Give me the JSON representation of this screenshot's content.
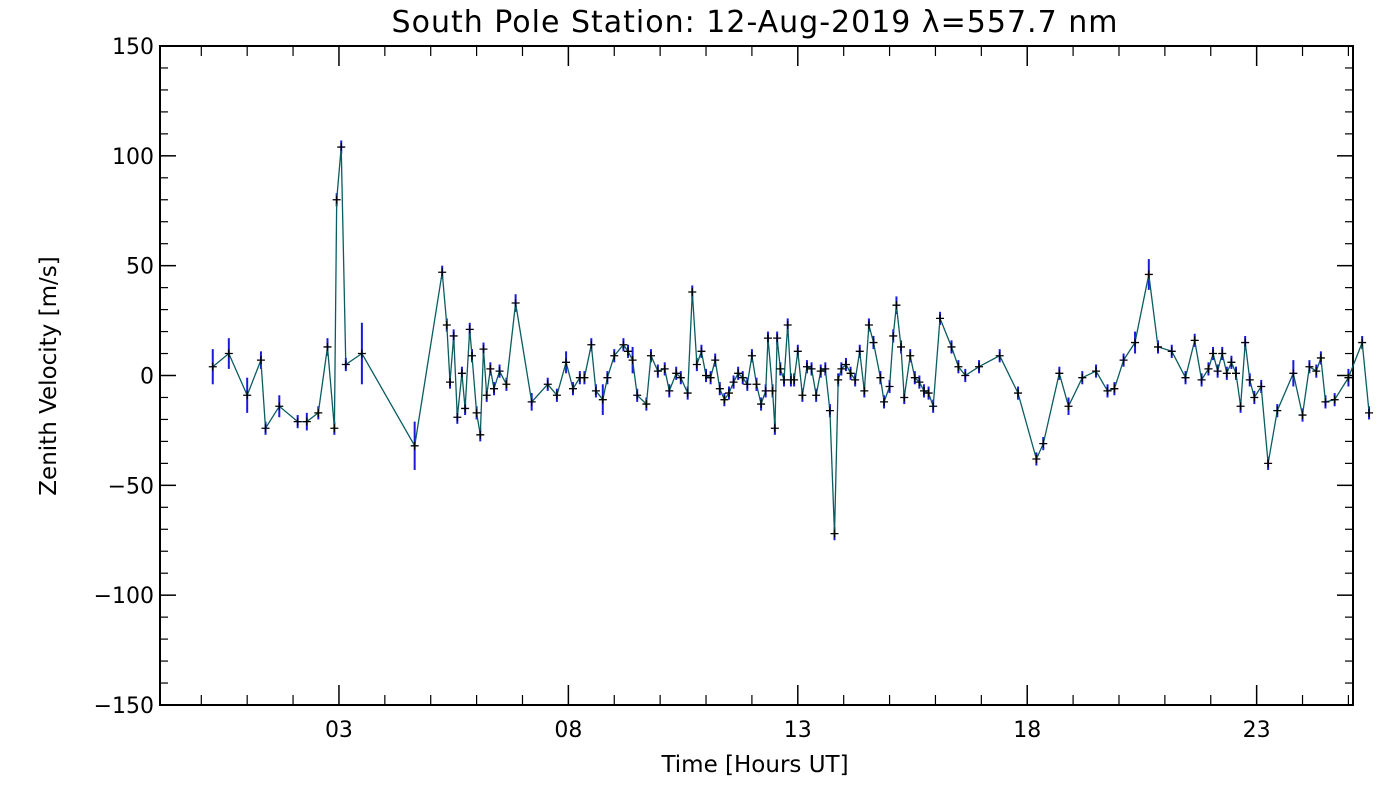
{
  "chart_data": {
    "type": "line",
    "title": "South Pole Station: 12-Aug-2019 λ=557.7 nm",
    "xlabel": "Time [Hours UT]",
    "ylabel": "Zenith Velocity [m/s]",
    "xlim": [
      -0.9,
      25.1
    ],
    "ylim": [
      -150,
      150
    ],
    "x_ticks": [
      3,
      8,
      13,
      18,
      23
    ],
    "x_tick_labels": [
      "03",
      "08",
      "13",
      "18",
      "23"
    ],
    "y_ticks": [
      -150,
      -100,
      -50,
      0,
      50,
      100,
      150
    ],
    "y_tick_labels": [
      "−150",
      "−100",
      "−50",
      "0",
      "50",
      "100",
      "150"
    ],
    "line_color": "#0a5c60",
    "errorbar_color": "#1a1adc",
    "marker_color": "#000000",
    "series": [
      {
        "name": "Zenith Velocity",
        "points": [
          [
            0.25,
            4,
            8
          ],
          [
            0.6,
            10,
            7
          ],
          [
            1.0,
            -9,
            8
          ],
          [
            1.3,
            7,
            4
          ],
          [
            1.4,
            -24,
            3
          ],
          [
            1.7,
            -14,
            5
          ],
          [
            2.1,
            -21,
            3
          ],
          [
            2.3,
            -21,
            4
          ],
          [
            2.55,
            -17,
            3
          ],
          [
            2.75,
            13,
            4
          ],
          [
            2.9,
            -24,
            3
          ],
          [
            2.95,
            80,
            3
          ],
          [
            3.05,
            104,
            3
          ],
          [
            3.15,
            5,
            3
          ],
          [
            3.5,
            10,
            14
          ],
          [
            4.65,
            -32,
            11
          ],
          [
            5.25,
            47,
            3
          ],
          [
            5.35,
            23,
            3
          ],
          [
            5.42,
            -3,
            3
          ],
          [
            5.5,
            18,
            3
          ],
          [
            5.58,
            -19,
            3
          ],
          [
            5.68,
            1,
            3
          ],
          [
            5.75,
            -15,
            3
          ],
          [
            5.85,
            21,
            3
          ],
          [
            5.9,
            9,
            3
          ],
          [
            6.0,
            -17,
            3
          ],
          [
            6.08,
            -27,
            3
          ],
          [
            6.15,
            12,
            3
          ],
          [
            6.22,
            -9,
            3
          ],
          [
            6.3,
            3,
            3
          ],
          [
            6.38,
            -6,
            3
          ],
          [
            6.5,
            2,
            3
          ],
          [
            6.65,
            -4,
            3
          ],
          [
            6.85,
            33,
            4
          ],
          [
            7.2,
            -12,
            4
          ],
          [
            7.55,
            -4,
            3
          ],
          [
            7.75,
            -9,
            3
          ],
          [
            7.95,
            6,
            5
          ],
          [
            8.1,
            -6,
            3
          ],
          [
            8.25,
            -1,
            3
          ],
          [
            8.35,
            -1,
            3
          ],
          [
            8.5,
            14,
            3
          ],
          [
            8.6,
            -7,
            3
          ],
          [
            8.75,
            -11,
            7
          ],
          [
            8.85,
            -1,
            3
          ],
          [
            9.0,
            9,
            3
          ],
          [
            9.2,
            14,
            3
          ],
          [
            9.3,
            11,
            3
          ],
          [
            9.4,
            7,
            6
          ],
          [
            9.5,
            -9,
            3
          ],
          [
            9.7,
            -13,
            3
          ],
          [
            9.8,
            9,
            3
          ],
          [
            9.95,
            2,
            3
          ],
          [
            10.1,
            3,
            3
          ],
          [
            10.2,
            -7,
            3
          ],
          [
            10.35,
            1,
            3
          ],
          [
            10.45,
            -1,
            3
          ],
          [
            10.6,
            -8,
            3
          ],
          [
            10.7,
            38,
            3
          ],
          [
            10.8,
            5,
            3
          ],
          [
            10.9,
            11,
            3
          ],
          [
            11.0,
            0,
            3
          ],
          [
            11.1,
            -1,
            3
          ],
          [
            11.2,
            7,
            3
          ],
          [
            11.3,
            -6,
            3
          ],
          [
            11.4,
            -11,
            3
          ],
          [
            11.5,
            -8,
            3
          ],
          [
            11.6,
            -3,
            3
          ],
          [
            11.7,
            1,
            3
          ],
          [
            11.8,
            -1,
            3
          ],
          [
            11.9,
            -4,
            3
          ],
          [
            12.0,
            9,
            3
          ],
          [
            12.1,
            -4,
            3
          ],
          [
            12.2,
            -13,
            3
          ],
          [
            12.3,
            -7,
            3
          ],
          [
            12.35,
            17,
            3
          ],
          [
            12.45,
            -7,
            3
          ],
          [
            12.5,
            -24,
            3
          ],
          [
            12.55,
            17,
            3
          ],
          [
            12.62,
            3,
            3
          ],
          [
            12.7,
            -2,
            3
          ],
          [
            12.78,
            23,
            3
          ],
          [
            12.85,
            -2,
            3
          ],
          [
            12.92,
            -2,
            3
          ],
          [
            13.0,
            11,
            3
          ],
          [
            13.1,
            -9,
            3
          ],
          [
            13.2,
            4,
            3
          ],
          [
            13.3,
            3,
            3
          ],
          [
            13.4,
            -9,
            3
          ],
          [
            13.5,
            2,
            3
          ],
          [
            13.6,
            3,
            3
          ],
          [
            13.7,
            -16,
            3
          ],
          [
            13.8,
            -72,
            3
          ],
          [
            13.88,
            -2,
            3
          ],
          [
            13.95,
            3,
            3
          ],
          [
            14.05,
            5,
            3
          ],
          [
            14.15,
            1,
            3
          ],
          [
            14.25,
            -2,
            3
          ],
          [
            14.35,
            11,
            3
          ],
          [
            14.45,
            -7,
            3
          ],
          [
            14.55,
            23,
            3
          ],
          [
            14.65,
            15,
            3
          ],
          [
            14.8,
            -1,
            3
          ],
          [
            14.88,
            -12,
            3
          ],
          [
            15.0,
            -5,
            3
          ],
          [
            15.08,
            18,
            3
          ],
          [
            15.15,
            32,
            4
          ],
          [
            15.25,
            13,
            3
          ],
          [
            15.32,
            -10,
            3
          ],
          [
            15.45,
            9,
            3
          ],
          [
            15.55,
            -1,
            3
          ],
          [
            15.65,
            -3,
            3
          ],
          [
            15.75,
            -7,
            3
          ],
          [
            15.85,
            -8,
            3
          ],
          [
            15.95,
            -14,
            3
          ],
          [
            16.1,
            26,
            3
          ],
          [
            16.35,
            13,
            3
          ],
          [
            16.5,
            4,
            3
          ],
          [
            16.65,
            0,
            3
          ],
          [
            16.95,
            4,
            3
          ],
          [
            17.4,
            9,
            3
          ],
          [
            17.8,
            -8,
            3
          ],
          [
            18.2,
            -38,
            3
          ],
          [
            18.35,
            -31,
            3
          ],
          [
            18.7,
            1,
            3
          ],
          [
            18.9,
            -14,
            4
          ],
          [
            19.2,
            -1,
            3
          ],
          [
            19.5,
            2,
            3
          ],
          [
            19.75,
            -7,
            3
          ],
          [
            19.9,
            -6,
            3
          ],
          [
            20.1,
            7,
            3
          ],
          [
            20.35,
            15,
            5
          ],
          [
            20.65,
            46,
            7
          ],
          [
            20.85,
            13,
            3
          ],
          [
            21.15,
            11,
            3
          ],
          [
            21.45,
            -1,
            3
          ],
          [
            21.65,
            16,
            3
          ],
          [
            21.8,
            -2,
            3
          ],
          [
            21.95,
            3,
            3
          ],
          [
            22.05,
            10,
            3
          ],
          [
            22.15,
            2,
            3
          ],
          [
            22.25,
            10,
            3
          ],
          [
            22.35,
            1,
            3
          ],
          [
            22.45,
            6,
            3
          ],
          [
            22.55,
            1,
            3
          ],
          [
            22.65,
            -14,
            3
          ],
          [
            22.75,
            15,
            3
          ],
          [
            22.85,
            -2,
            3
          ],
          [
            22.95,
            -10,
            3
          ],
          [
            23.1,
            -5,
            3
          ],
          [
            23.25,
            -40,
            3
          ],
          [
            23.45,
            -16,
            3
          ],
          [
            23.8,
            1,
            6
          ],
          [
            24.0,
            -18,
            3
          ],
          [
            24.15,
            4,
            3
          ],
          [
            24.3,
            2,
            3
          ],
          [
            24.4,
            8,
            3
          ],
          [
            24.5,
            -12,
            3
          ],
          [
            24.7,
            -11,
            3
          ],
          [
            25.0,
            -1,
            4
          ],
          [
            25.3,
            15,
            3
          ],
          [
            25.45,
            -17,
            3
          ]
        ]
      }
    ]
  }
}
